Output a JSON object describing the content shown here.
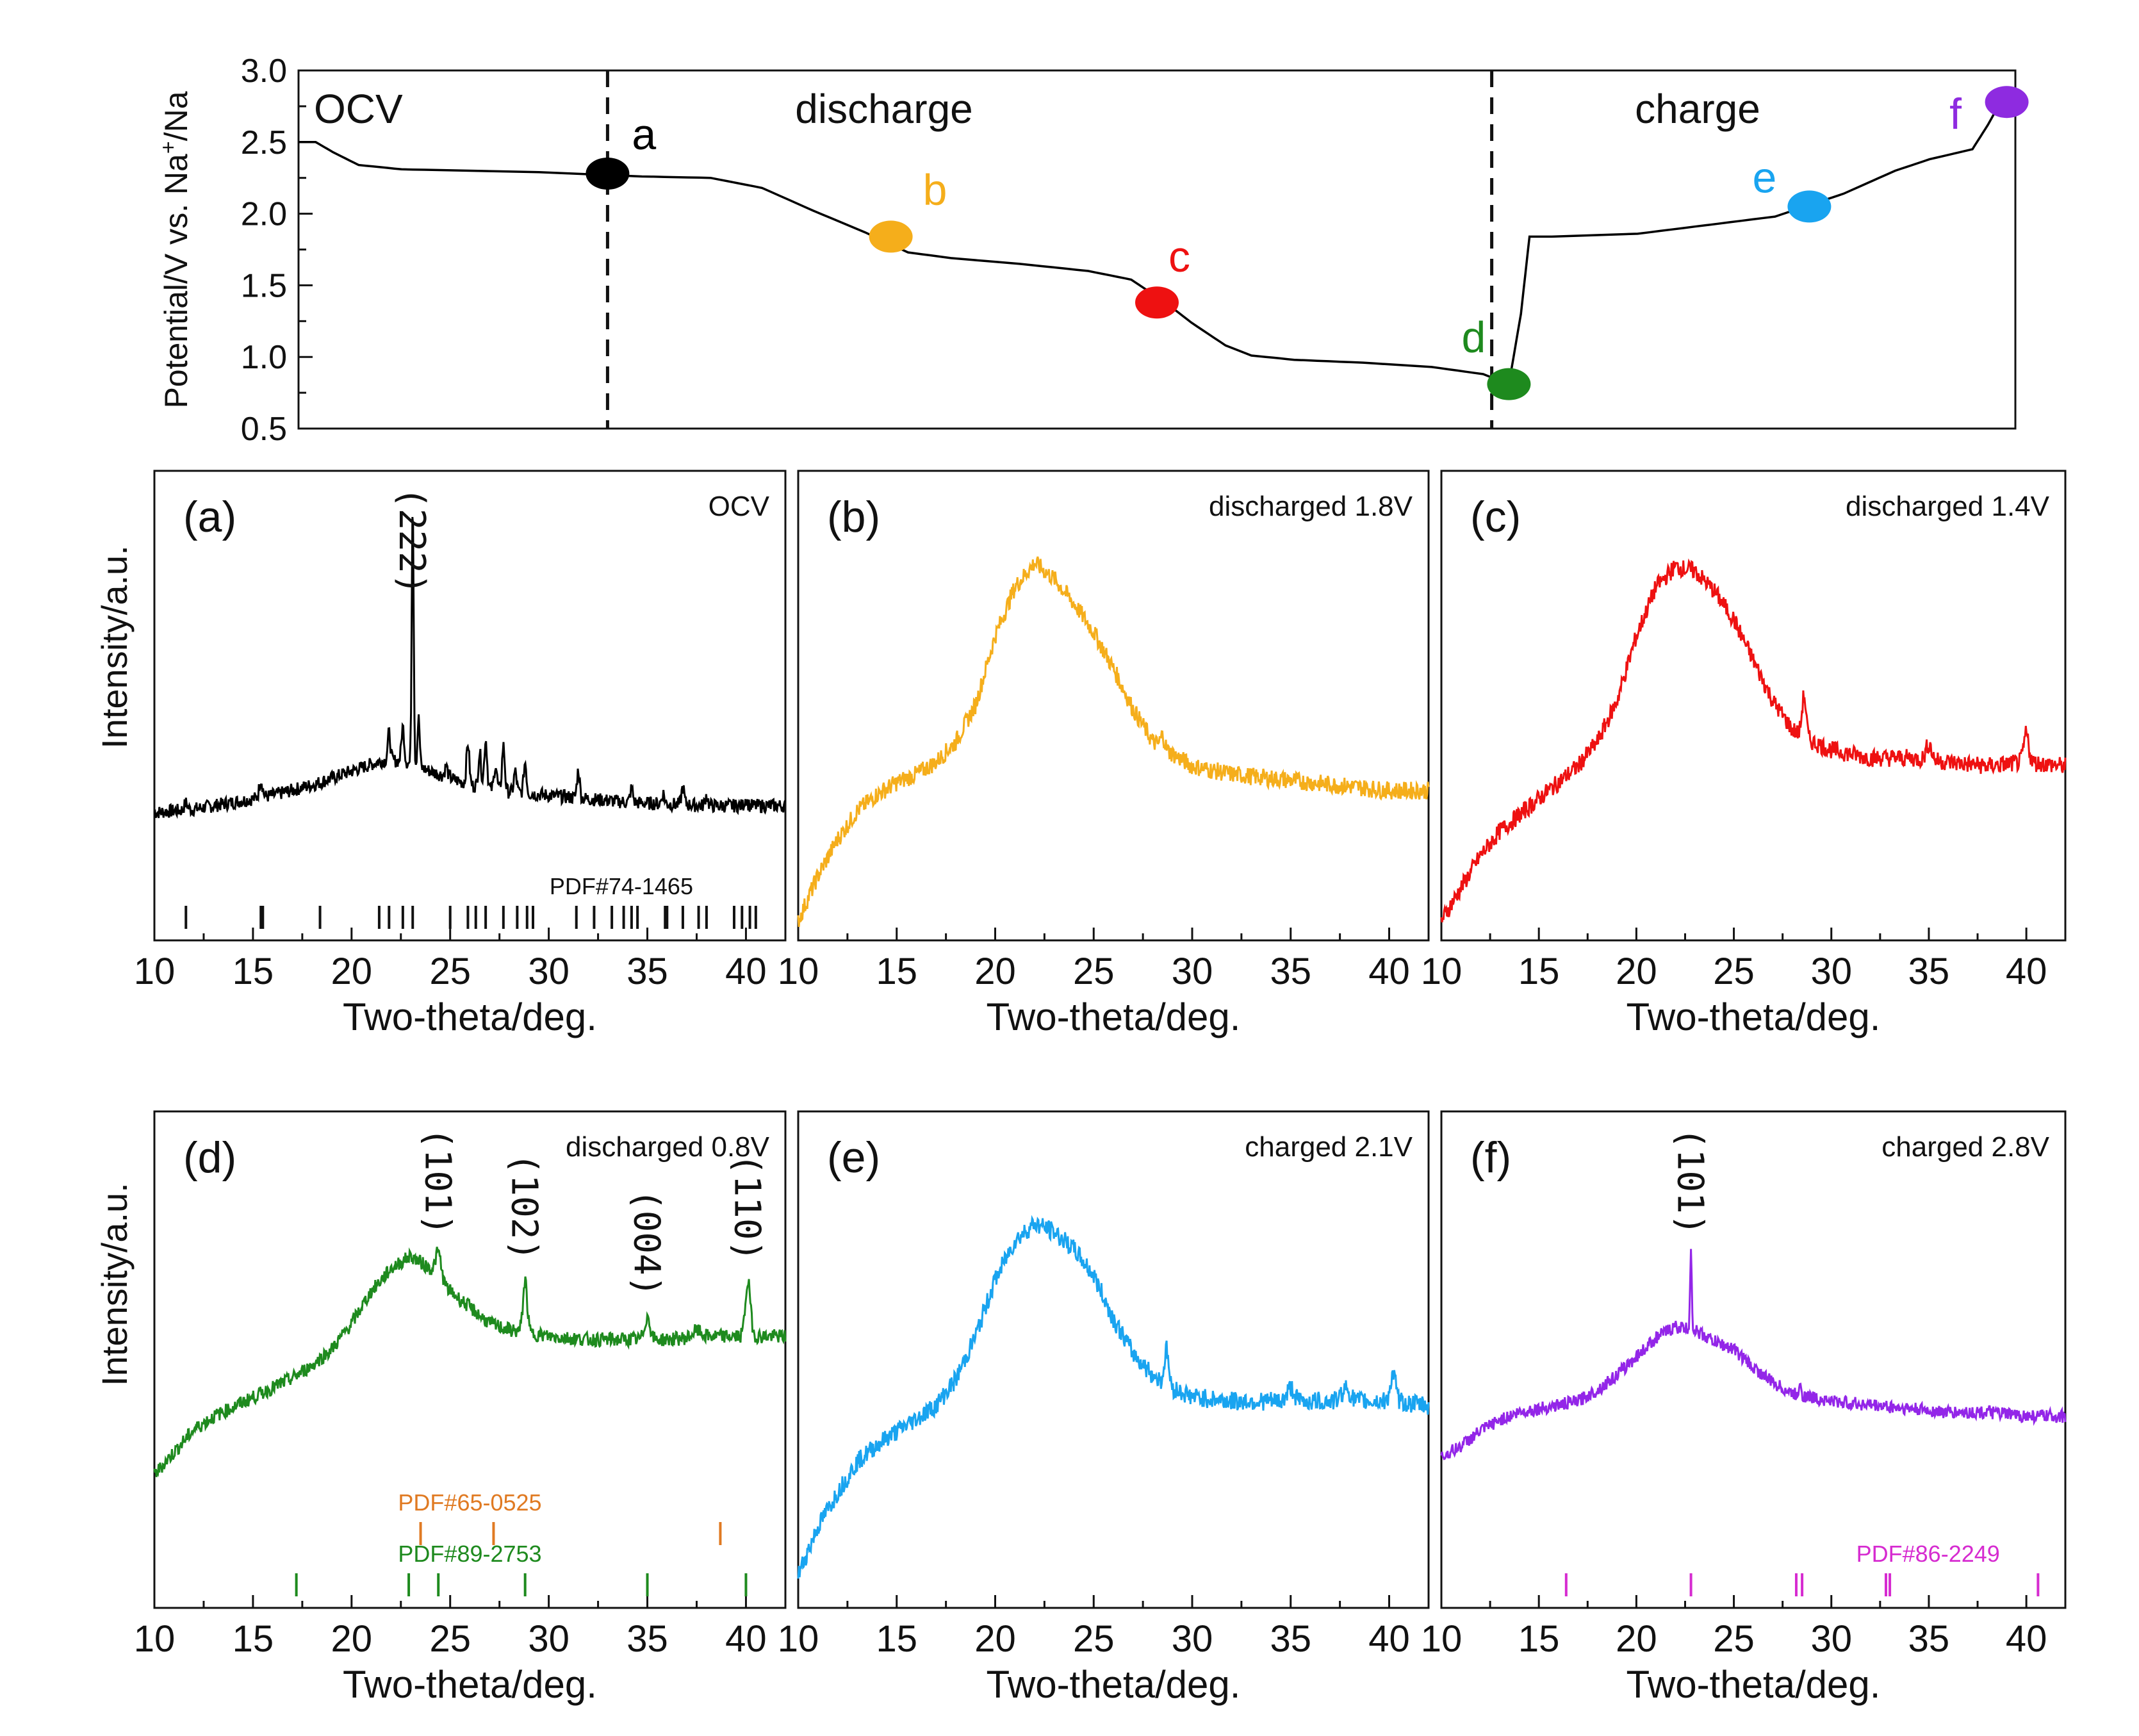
{
  "chart_data": [
    {
      "id": "top",
      "type": "line",
      "title": "",
      "ylabel": "Potential/V vs. Na+/Na",
      "ylabel_parts": [
        "Potential/V vs. Na",
        "+",
        "/Na"
      ],
      "ylim": [
        0.5,
        3.0
      ],
      "yticks": [
        0.5,
        1.0,
        1.5,
        2.0,
        2.5,
        3.0
      ],
      "ytick_labels": [
        "0.5",
        "1.0",
        "1.5",
        "2.0",
        "2.5",
        "3.0"
      ],
      "xlim": [
        0,
        100
      ],
      "section_labels": [
        "OCV",
        "discharge",
        "charge"
      ],
      "divider_x": [
        18,
        69.5
      ],
      "color": "#000000",
      "curve": [
        [
          0,
          2.5
        ],
        [
          1,
          2.5
        ],
        [
          2,
          2.43
        ],
        [
          3.5,
          2.34
        ],
        [
          6,
          2.31
        ],
        [
          10,
          2.3
        ],
        [
          14,
          2.29
        ],
        [
          16,
          2.28
        ],
        [
          18,
          2.27
        ],
        [
          20,
          2.26
        ],
        [
          24,
          2.25
        ],
        [
          27,
          2.18
        ],
        [
          30,
          2.02
        ],
        [
          33,
          1.87
        ],
        [
          35.5,
          1.73
        ],
        [
          38,
          1.69
        ],
        [
          42,
          1.65
        ],
        [
          46,
          1.6
        ],
        [
          48.5,
          1.54
        ],
        [
          50.5,
          1.38
        ],
        [
          52,
          1.24
        ],
        [
          54,
          1.08
        ],
        [
          55.5,
          1.01
        ],
        [
          58,
          0.98
        ],
        [
          62,
          0.96
        ],
        [
          66,
          0.93
        ],
        [
          69,
          0.88
        ],
        [
          70.5,
          0.81
        ],
        [
          71.2,
          1.3
        ],
        [
          71.7,
          1.84
        ],
        [
          73,
          1.84
        ],
        [
          78,
          1.86
        ],
        [
          82,
          1.92
        ],
        [
          86,
          1.98
        ],
        [
          88,
          2.06
        ],
        [
          90,
          2.14
        ],
        [
          93,
          2.3
        ],
        [
          95,
          2.38
        ],
        [
          97.5,
          2.45
        ],
        [
          98.4,
          2.62
        ],
        [
          99,
          2.75
        ],
        [
          100,
          2.78
        ]
      ],
      "markers": [
        {
          "label": "a",
          "x": 18,
          "y": 2.28,
          "color": "#000000"
        },
        {
          "label": "b",
          "x": 34.5,
          "y": 1.84,
          "color": "#F5AE1B"
        },
        {
          "label": "c",
          "x": 50,
          "y": 1.38,
          "color": "#EE1111"
        },
        {
          "label": "d",
          "x": 70.5,
          "y": 0.81,
          "color": "#1E8A1E"
        },
        {
          "label": "e",
          "x": 88,
          "y": 2.05,
          "color": "#19A4F0"
        },
        {
          "label": "f",
          "x": 99.5,
          "y": 2.78,
          "color": "#8E2BE0"
        }
      ]
    },
    {
      "id": "a",
      "type": "line",
      "panel_label": "(a)",
      "corner_label": "OCV",
      "xlabel": "Two-theta/deg.",
      "ylabel": "Intensity/a.u.",
      "xlim": [
        10,
        42
      ],
      "xticks": [
        10,
        15,
        20,
        25,
        30,
        35,
        40
      ],
      "xtick_labels": [
        "10",
        "15",
        "20",
        "25",
        "30",
        "35",
        "40"
      ],
      "ylim": [
        0,
        100
      ],
      "color": "#000000",
      "background": [
        [
          10,
          16
        ],
        [
          12,
          17
        ],
        [
          14,
          19
        ],
        [
          16,
          21
        ],
        [
          18,
          24
        ],
        [
          20,
          28
        ],
        [
          21.5,
          31
        ],
        [
          22.5,
          31
        ],
        [
          24,
          28
        ],
        [
          26,
          24
        ],
        [
          28,
          22
        ],
        [
          30,
          21
        ],
        [
          34,
          19
        ],
        [
          38,
          18
        ],
        [
          42,
          18
        ]
      ],
      "peaks": [
        [
          11.6,
          2,
          0.12
        ],
        [
          15.4,
          5,
          0.12
        ],
        [
          21.9,
          8,
          0.1
        ],
        [
          22.6,
          10,
          0.1
        ],
        [
          23.1,
          77,
          0.07
        ],
        [
          23.4,
          14,
          0.08
        ],
        [
          24.8,
          3,
          0.1
        ],
        [
          25.9,
          12,
          0.1
        ],
        [
          26.5,
          10,
          0.1
        ],
        [
          26.8,
          14,
          0.1
        ],
        [
          27.3,
          7,
          0.1
        ],
        [
          27.7,
          13,
          0.1
        ],
        [
          28.3,
          6,
          0.1
        ],
        [
          28.8,
          9,
          0.1
        ],
        [
          31.5,
          8,
          0.1
        ],
        [
          34.2,
          4,
          0.1
        ],
        [
          35.8,
          3,
          0.1
        ],
        [
          36.8,
          5,
          0.1
        ],
        [
          38.0,
          3,
          0.1
        ],
        [
          40.0,
          2,
          0.1
        ]
      ],
      "noise": 0.9,
      "peak_annotations": [
        {
          "text": "(222)",
          "x": 23.1
        }
      ],
      "reference_sets": [
        {
          "label": "PDF#74-1465",
          "color": "#111111",
          "positions": [
            11.6,
            15.4,
            15.5,
            18.4,
            21.4,
            21.9,
            22.6,
            23.1,
            25.0,
            25.9,
            26.3,
            26.8,
            27.7,
            28.4,
            28.9,
            29.2,
            31.4,
            32.3,
            33.2,
            33.8,
            34.2,
            34.5,
            35.9,
            36.0,
            36.8,
            37.6,
            38.0,
            39.4,
            39.8,
            40.2,
            40.5
          ]
        }
      ]
    },
    {
      "id": "b",
      "type": "line",
      "panel_label": "(b)",
      "corner_label": "discharged 1.8V",
      "xlabel": "Two-theta/deg.",
      "xlim": [
        10,
        42
      ],
      "xticks": [
        10,
        15,
        20,
        25,
        30,
        35,
        40
      ],
      "xtick_labels": [
        "10",
        "15",
        "20",
        "25",
        "30",
        "35",
        "40"
      ],
      "ylim": [
        0,
        100
      ],
      "color": "#F5AE1B",
      "background": [
        [
          10,
          2
        ],
        [
          11,
          13
        ],
        [
          12,
          22
        ],
        [
          13,
          29
        ],
        [
          14,
          33
        ],
        [
          15,
          36
        ],
        [
          16,
          38
        ],
        [
          17,
          41
        ],
        [
          18,
          46
        ],
        [
          19,
          55
        ],
        [
          20,
          72
        ],
        [
          21,
          84
        ],
        [
          22,
          90
        ],
        [
          23,
          86
        ],
        [
          24,
          80
        ],
        [
          25,
          73
        ],
        [
          26,
          64
        ],
        [
          27,
          54
        ],
        [
          28,
          46
        ],
        [
          29,
          43
        ],
        [
          30,
          40
        ],
        [
          32,
          38
        ],
        [
          34,
          37
        ],
        [
          36,
          36
        ],
        [
          38,
          35
        ],
        [
          40,
          34
        ],
        [
          42,
          34
        ]
      ],
      "peaks": [
        [
          28.5,
          3,
          0.15
        ]
      ],
      "noise": 1.0,
      "peak_annotations": [],
      "reference_sets": []
    },
    {
      "id": "c",
      "type": "line",
      "panel_label": "(c)",
      "corner_label": "discharged 1.4V",
      "xlabel": "Two-theta/deg.",
      "xlim": [
        10,
        42
      ],
      "xticks": [
        10,
        15,
        20,
        25,
        30,
        35,
        40
      ],
      "xtick_labels": [
        "10",
        "15",
        "20",
        "25",
        "30",
        "35",
        "40"
      ],
      "ylim": [
        0,
        100
      ],
      "color": "#EE1111",
      "background": [
        [
          10,
          2
        ],
        [
          11,
          10
        ],
        [
          12,
          18
        ],
        [
          13,
          24
        ],
        [
          14,
          28
        ],
        [
          15,
          32
        ],
        [
          16,
          36
        ],
        [
          17,
          40
        ],
        [
          18,
          46
        ],
        [
          19,
          56
        ],
        [
          20,
          72
        ],
        [
          21,
          84
        ],
        [
          22,
          89
        ],
        [
          23,
          88
        ],
        [
          24,
          83
        ],
        [
          25,
          76
        ],
        [
          26,
          66
        ],
        [
          27,
          56
        ],
        [
          28,
          49
        ],
        [
          29,
          46
        ],
        [
          30,
          44
        ],
        [
          32,
          42
        ],
        [
          34,
          42
        ],
        [
          36,
          41
        ],
        [
          38,
          40
        ],
        [
          40,
          41
        ],
        [
          42,
          40
        ]
      ],
      "peaks": [
        [
          28.6,
          10,
          0.15
        ],
        [
          35.0,
          4,
          0.2
        ],
        [
          40.0,
          7,
          0.18
        ]
      ],
      "noise": 1.0,
      "peak_annotations": [],
      "reference_sets": []
    },
    {
      "id": "d",
      "type": "line",
      "panel_label": "(d)",
      "corner_label": "discharged 0.8V",
      "xlabel": "Two-theta/deg.",
      "ylabel": "Intensity/a.u.",
      "xlim": [
        10,
        42
      ],
      "xticks": [
        10,
        15,
        20,
        25,
        30,
        35,
        40
      ],
      "xtick_labels": [
        "10",
        "15",
        "20",
        "25",
        "30",
        "35",
        "40"
      ],
      "ylim": [
        0,
        100
      ],
      "color": "#1E8A1E",
      "background": [
        [
          10,
          3
        ],
        [
          11,
          10
        ],
        [
          12,
          17
        ],
        [
          13,
          21
        ],
        [
          14,
          24
        ],
        [
          15,
          27
        ],
        [
          16,
          30
        ],
        [
          17,
          33
        ],
        [
          18,
          37
        ],
        [
          19,
          42
        ],
        [
          20,
          50
        ],
        [
          21,
          60
        ],
        [
          22,
          67
        ],
        [
          23,
          71
        ],
        [
          24,
          67
        ],
        [
          25,
          60
        ],
        [
          26,
          55
        ],
        [
          27,
          50
        ],
        [
          28,
          48
        ],
        [
          29,
          47
        ],
        [
          30,
          46
        ],
        [
          32,
          45
        ],
        [
          34,
          45
        ],
        [
          36,
          45
        ],
        [
          38,
          46
        ],
        [
          40,
          46
        ],
        [
          42,
          46
        ]
      ],
      "peaks": [
        [
          24.4,
          8,
          0.2
        ],
        [
          28.8,
          16,
          0.15
        ],
        [
          35.0,
          7,
          0.2
        ],
        [
          37.5,
          2,
          0.3
        ],
        [
          40.1,
          17,
          0.18
        ]
      ],
      "noise": 1.0,
      "peak_annotations": [
        {
          "text": "(101)",
          "x": 24.4
        },
        {
          "text": "(102)",
          "x": 28.8
        },
        {
          "text": "(004)",
          "x": 35.0
        },
        {
          "text": "(110)",
          "x": 40.1
        }
      ],
      "reference_sets": [
        {
          "label": "PDF#89-2753",
          "color": "#1E8A1E",
          "positions": [
            17.2,
            22.9,
            24.4,
            28.8,
            35.0,
            40.0
          ]
        },
        {
          "label": "PDF#65-0525",
          "color": "#E07A22",
          "positions": [
            23.5,
            27.2,
            38.7
          ]
        }
      ]
    },
    {
      "id": "e",
      "type": "line",
      "panel_label": "(e)",
      "corner_label": "charged 2.1V",
      "xlabel": "Two-theta/deg.",
      "xlim": [
        10,
        42
      ],
      "xticks": [
        10,
        15,
        20,
        25,
        30,
        35,
        40
      ],
      "xtick_labels": [
        "10",
        "15",
        "20",
        "25",
        "30",
        "35",
        "40"
      ],
      "ylim": [
        0,
        100
      ],
      "color": "#19A4F0",
      "background": [
        [
          10,
          5
        ],
        [
          11,
          16
        ],
        [
          12,
          24
        ],
        [
          13,
          31
        ],
        [
          14,
          35
        ],
        [
          15,
          38
        ],
        [
          16,
          41
        ],
        [
          17,
          44
        ],
        [
          18,
          50
        ],
        [
          19,
          60
        ],
        [
          20,
          73
        ],
        [
          21,
          82
        ],
        [
          22,
          86
        ],
        [
          23,
          84
        ],
        [
          24,
          80
        ],
        [
          25,
          74
        ],
        [
          26,
          64
        ],
        [
          27,
          56
        ],
        [
          28,
          51
        ],
        [
          29,
          48
        ],
        [
          30,
          46
        ],
        [
          32,
          45
        ],
        [
          34,
          45
        ],
        [
          36,
          45
        ],
        [
          38,
          45
        ],
        [
          40,
          45
        ],
        [
          42,
          44
        ]
      ],
      "peaks": [
        [
          28.7,
          8,
          0.15
        ],
        [
          35.0,
          3,
          0.25
        ],
        [
          37.8,
          3,
          0.3
        ],
        [
          40.2,
          6,
          0.2
        ]
      ],
      "noise": 1.0,
      "peak_annotations": [],
      "reference_sets": []
    },
    {
      "id": "f",
      "type": "line",
      "panel_label": "(f)",
      "corner_label": "charged 2.8V",
      "xlabel": "Two-theta/deg.",
      "xlim": [
        10,
        42
      ],
      "xticks": [
        10,
        15,
        20,
        25,
        30,
        35,
        40
      ],
      "xtick_labels": [
        "10",
        "15",
        "20",
        "25",
        "30",
        "35",
        "40"
      ],
      "ylim": [
        0,
        100
      ],
      "color": "#9326E8",
      "background": [
        [
          10,
          21
        ],
        [
          11,
          24
        ],
        [
          12,
          28
        ],
        [
          13,
          31
        ],
        [
          14,
          33
        ],
        [
          15,
          34
        ],
        [
          16,
          35
        ],
        [
          17,
          36
        ],
        [
          18,
          39
        ],
        [
          19,
          43
        ],
        [
          20,
          48
        ],
        [
          21,
          53
        ],
        [
          22,
          56
        ],
        [
          23,
          55
        ],
        [
          24,
          52
        ],
        [
          25,
          50
        ],
        [
          26,
          45
        ],
        [
          27,
          41
        ],
        [
          28,
          38
        ],
        [
          29,
          37
        ],
        [
          30,
          36
        ],
        [
          32,
          35
        ],
        [
          34,
          34
        ],
        [
          36,
          33
        ],
        [
          38,
          33
        ],
        [
          40,
          32
        ],
        [
          42,
          32
        ]
      ],
      "peaks": [
        [
          22.8,
          22,
          0.06
        ],
        [
          28.4,
          4,
          0.08
        ]
      ],
      "noise": 0.8,
      "peak_annotations": [
        {
          "text": "(101)",
          "x": 22.8
        }
      ],
      "reference_sets": [
        {
          "label": "PDF#86-2249",
          "color": "#D62BD0",
          "positions": [
            16.4,
            22.8,
            28.2,
            28.5,
            32.8,
            33.0,
            40.6
          ]
        }
      ]
    }
  ]
}
